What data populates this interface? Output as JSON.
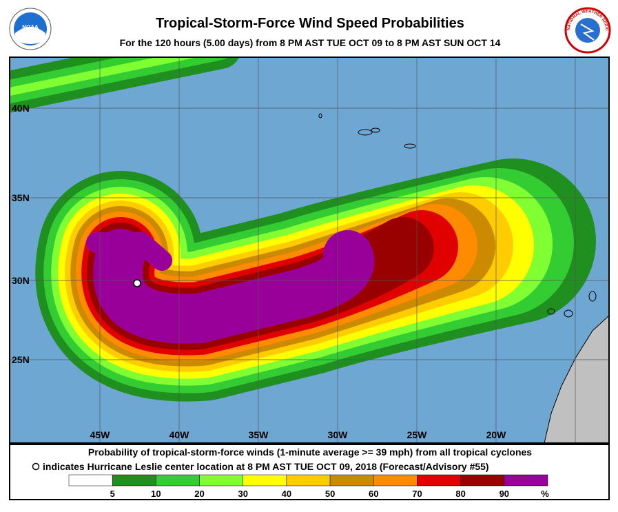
{
  "header": {
    "title": "Tropical-Storm-Force Wind Speed Probabilities",
    "subtitle": "For the 120 hours (5.00 days) from 8 PM AST TUE OCT 09 to 8 PM AST SUN OCT 14",
    "left_logo": "NOAA",
    "right_logo": "NATIONAL WEATHER SERVICE"
  },
  "map": {
    "lat_labels": [
      "40N",
      "35N",
      "30N",
      "25N"
    ],
    "lon_labels": [
      "45W",
      "40W",
      "35W",
      "30W",
      "25W",
      "20W"
    ]
  },
  "footer": {
    "line1": "Probability of tropical-storm-force winds (1-minute average >= 39 mph) from all tropical cyclones",
    "line2": "indicates Hurricane Leslie center location at 8 PM AST TUE OCT 09, 2018 (Forecast/Advisory #55)"
  },
  "legend": {
    "colors": [
      "#ffffff",
      "#1f8f1f",
      "#33cc33",
      "#80ff33",
      "#ffff00",
      "#ffcc00",
      "#cc8a00",
      "#ff8c00",
      "#e00000",
      "#990000",
      "#990099"
    ],
    "labels": [
      5,
      10,
      20,
      30,
      40,
      50,
      60,
      70,
      80,
      90
    ],
    "unit": "%"
  }
}
